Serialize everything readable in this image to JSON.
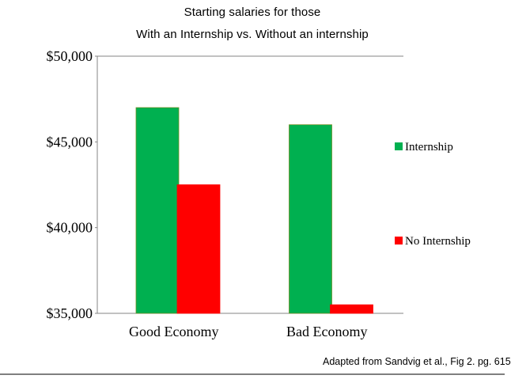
{
  "chart_data": {
    "type": "bar",
    "title": [
      "Starting salaries for those",
      "With an Internship vs.  Without an internship"
    ],
    "categories": [
      "Good Economy",
      "Bad Economy"
    ],
    "series": [
      {
        "name": "Internship",
        "values": [
          47000,
          46000
        ],
        "color": "#00b050"
      },
      {
        "name": "No Internship",
        "values": [
          42500,
          35500
        ],
        "color": "#ff0000"
      }
    ],
    "ylim": [
      35000,
      50000
    ],
    "yticks": [
      35000,
      40000,
      45000,
      50000
    ],
    "ytick_labels": [
      "$35,000",
      "$40,000",
      "$45,000",
      "$50,000"
    ],
    "xlabel": "",
    "ylabel": "",
    "grid": false,
    "legend_position": "right",
    "source": "Adapted from  Sandvig et al.,  Fig 2. pg. 615"
  }
}
